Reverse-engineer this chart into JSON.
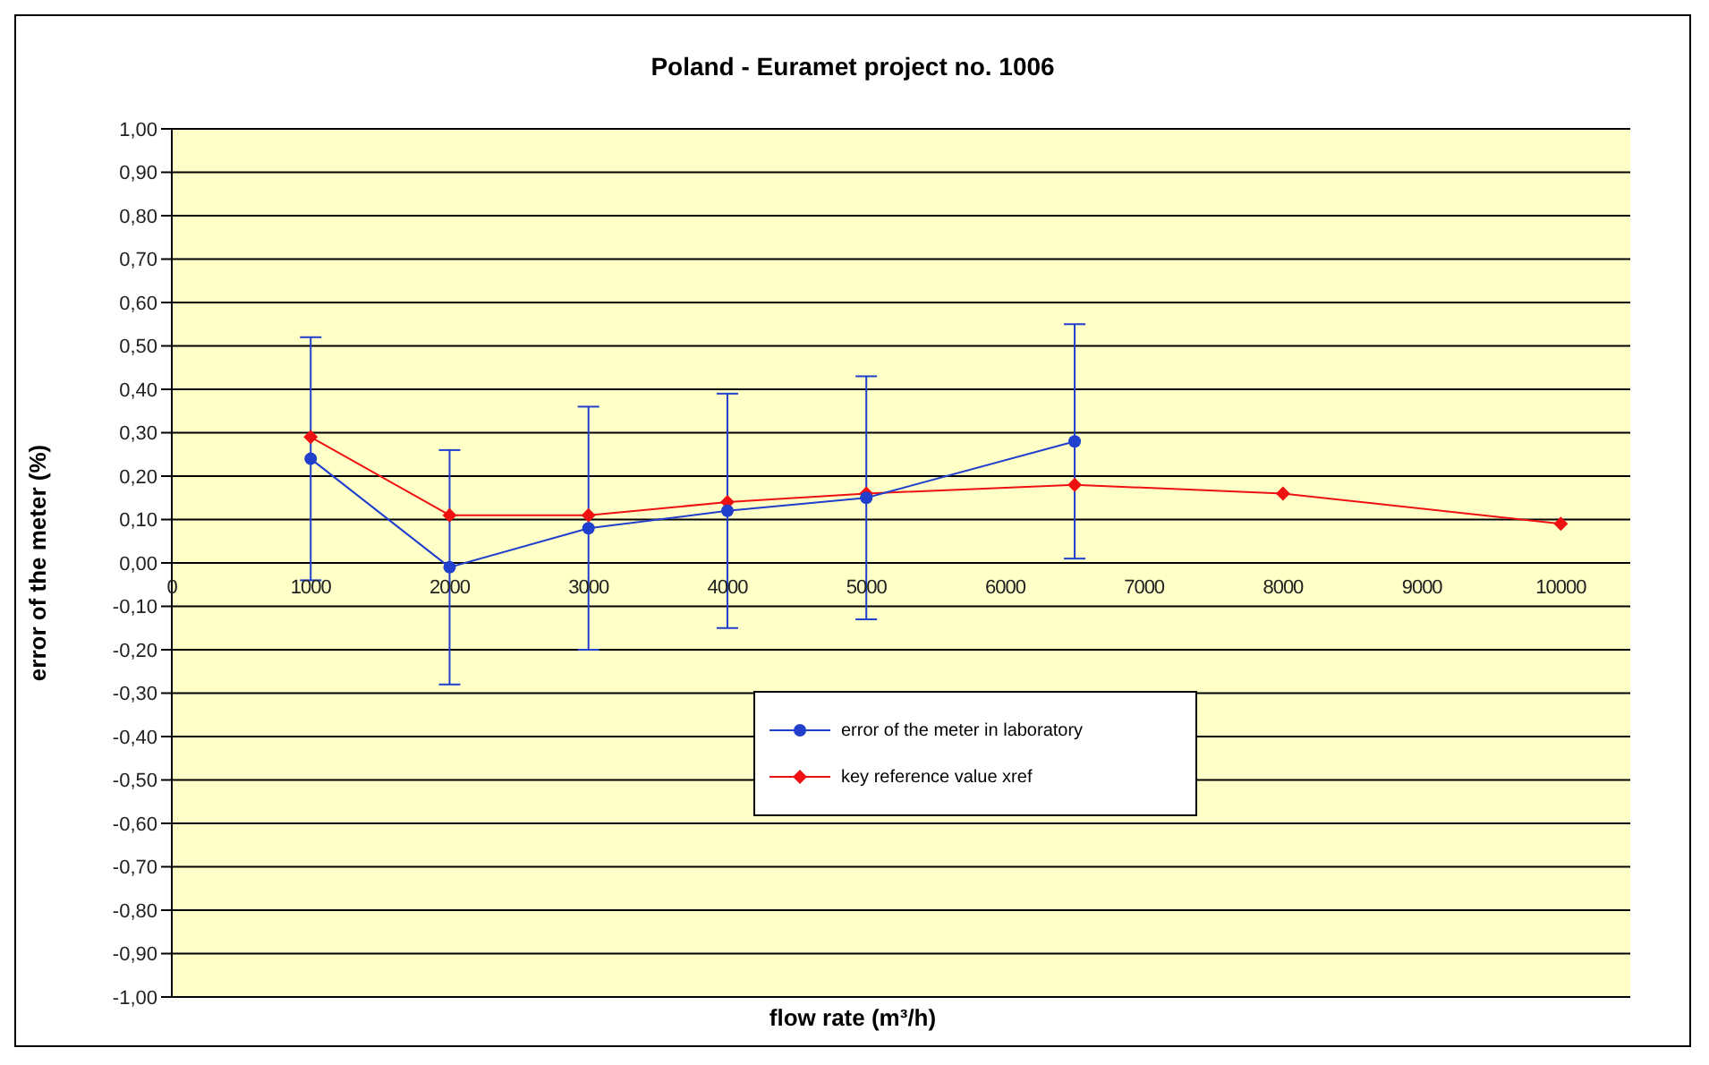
{
  "chart_data": {
    "type": "line",
    "title": "Poland -  Euramet project no. 1006",
    "xlabel": "flow rate (m³/h)",
    "ylabel": "error of the meter (%)",
    "xlim": [
      0,
      10500
    ],
    "xticks": [
      0,
      1000,
      2000,
      3000,
      4000,
      5000,
      6000,
      7000,
      8000,
      9000,
      10000
    ],
    "ylim": [
      -1,
      1
    ],
    "yticks": [
      {
        "value": -1,
        "label": "-1,00"
      },
      {
        "value": -0.9,
        "label": "-0,90"
      },
      {
        "value": -0.8,
        "label": "-0,80"
      },
      {
        "value": -0.7,
        "label": "-0,70"
      },
      {
        "value": -0.6,
        "label": "-0,60"
      },
      {
        "value": -0.5,
        "label": "-0,50"
      },
      {
        "value": -0.4,
        "label": "-0,40"
      },
      {
        "value": -0.3,
        "label": "-0,30"
      },
      {
        "value": -0.2,
        "label": "-0,20"
      },
      {
        "value": -0.1,
        "label": "-0,10"
      },
      {
        "value": 0,
        "label": "0,00"
      },
      {
        "value": 0.1,
        "label": "0,10"
      },
      {
        "value": 0.2,
        "label": "0,20"
      },
      {
        "value": 0.3,
        "label": "0,30"
      },
      {
        "value": 0.4,
        "label": "0,40"
      },
      {
        "value": 0.5,
        "label": "0,50"
      },
      {
        "value": 0.6,
        "label": "0,60"
      },
      {
        "value": 0.7,
        "label": "0,70"
      },
      {
        "value": 0.8,
        "label": "0,80"
      },
      {
        "value": 0.9,
        "label": "0,90"
      },
      {
        "value": 1,
        "label": "1,00"
      }
    ],
    "grid": "y",
    "legend": "bottom",
    "line_style": "solid",
    "series": [
      {
        "name": "error of the meter in laboratory",
        "color": "#1f3fcc",
        "marker": "circle",
        "x": [
          1000,
          2000,
          3000,
          4000,
          5000,
          6500
        ],
        "values": [
          0.24,
          -0.01,
          0.08,
          0.12,
          0.15,
          0.28
        ],
        "errors": [
          0.28,
          0.27,
          0.28,
          0.27,
          0.28,
          0.27
        ]
      },
      {
        "name": "key reference value xref",
        "color": "#ee1111",
        "marker": "diamond",
        "x": [
          1000,
          2000,
          3000,
          4000,
          5000,
          6500,
          8000,
          10000
        ],
        "values": [
          0.29,
          0.11,
          0.11,
          0.14,
          0.16,
          0.18,
          0.16,
          0.09
        ]
      }
    ]
  }
}
